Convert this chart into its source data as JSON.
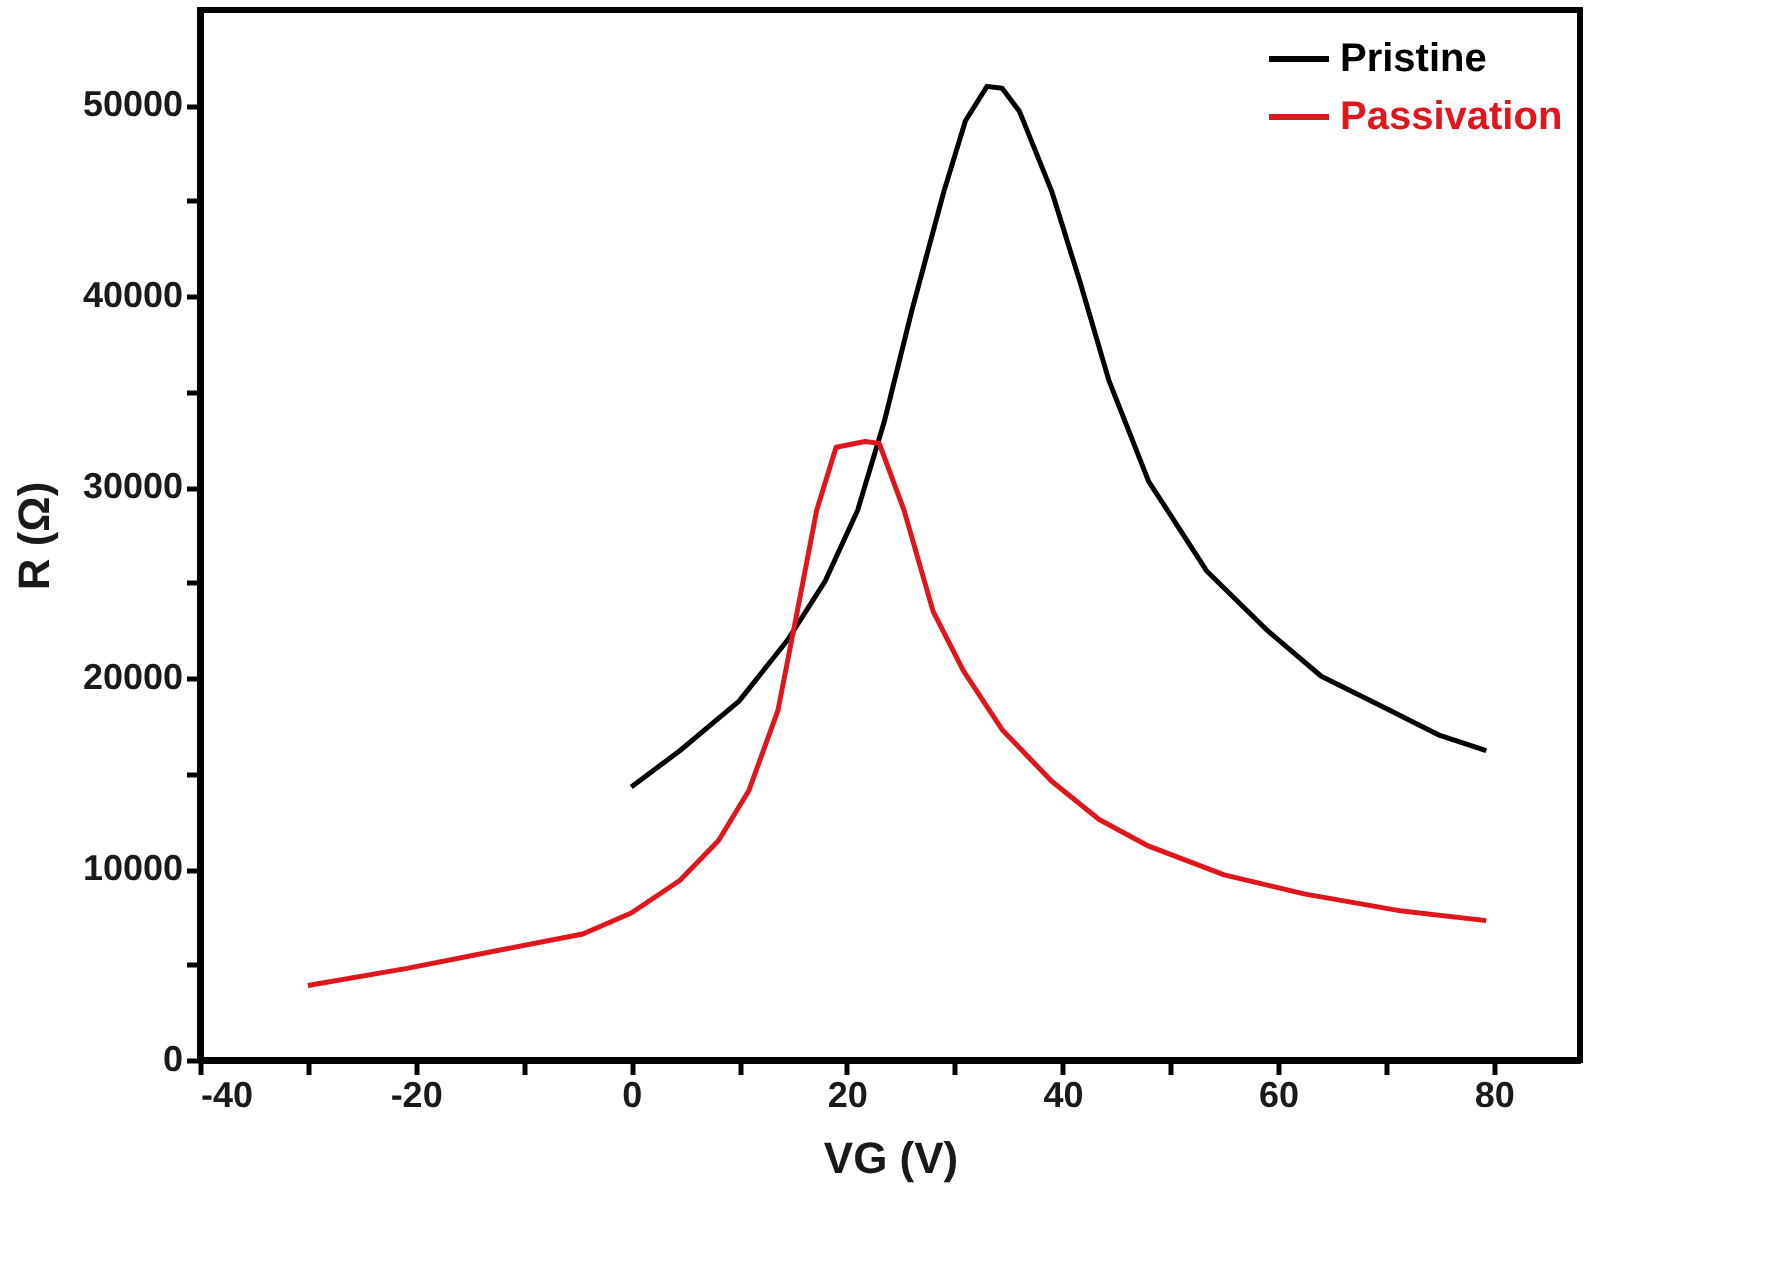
{
  "chart_data": {
    "type": "line",
    "xlabel": "VG (V)",
    "ylabel": "R (Ω)",
    "xlim": [
      -40,
      88
    ],
    "xticks": [
      -40,
      {
        "value": -30,
        "label": null
      },
      -20,
      {
        "value": -10,
        "label": null
      },
      0,
      {
        "value": 10,
        "label": null
      },
      20,
      {
        "value": 30,
        "label": null
      },
      40,
      {
        "value": 50,
        "label": null
      },
      60,
      {
        "value": 70,
        "label": null
      },
      80
    ],
    "ylim": [
      0,
      55000
    ],
    "yticks": [
      0,
      {
        "value": 5000,
        "label": null
      },
      10000,
      {
        "value": 15000,
        "label": null
      },
      20000,
      {
        "value": 25000,
        "label": null
      },
      30000,
      {
        "value": 35000,
        "label": null
      },
      40000,
      {
        "value": 45000,
        "label": null
      },
      50000
    ],
    "legend": "top right",
    "grid": false,
    "marker": "none",
    "line_style": "solid",
    "series": [
      {
        "name": "Pristine",
        "color": "#000000",
        "x": [
          0,
          4.5,
          10,
          14.5,
          18,
          21,
          23.5,
          26,
          29,
          31,
          33,
          34.4,
          36,
          39,
          41.6,
          44.3,
          48,
          53.4,
          59,
          64,
          69.7,
          75,
          79.3
        ],
        "values": [
          14300,
          16200,
          18800,
          22000,
          25100,
          28800,
          33500,
          39200,
          45500,
          49200,
          51000,
          50900,
          49700,
          45500,
          40800,
          35600,
          30300,
          25600,
          22500,
          20100,
          18500,
          17000,
          16200
        ]
      },
      {
        "name": "Passivation",
        "color": "#e0161c",
        "x": [
          -30,
          -20.8,
          -11.8,
          -4.5,
          0,
          4.5,
          8.1,
          10.9,
          13.6,
          15.4,
          17.2,
          19,
          21.7,
          23,
          25.3,
          28,
          30.8,
          34.4,
          39,
          43.4,
          48,
          55,
          62.4,
          71.5,
          79.3
        ],
        "values": [
          3900,
          4800,
          5800,
          6600,
          7700,
          9400,
          11500,
          14100,
          18300,
          23500,
          28800,
          32100,
          32400,
          32300,
          28800,
          23500,
          20400,
          17300,
          14600,
          12600,
          11200,
          9700,
          8700,
          7800,
          7300
        ]
      }
    ]
  }
}
